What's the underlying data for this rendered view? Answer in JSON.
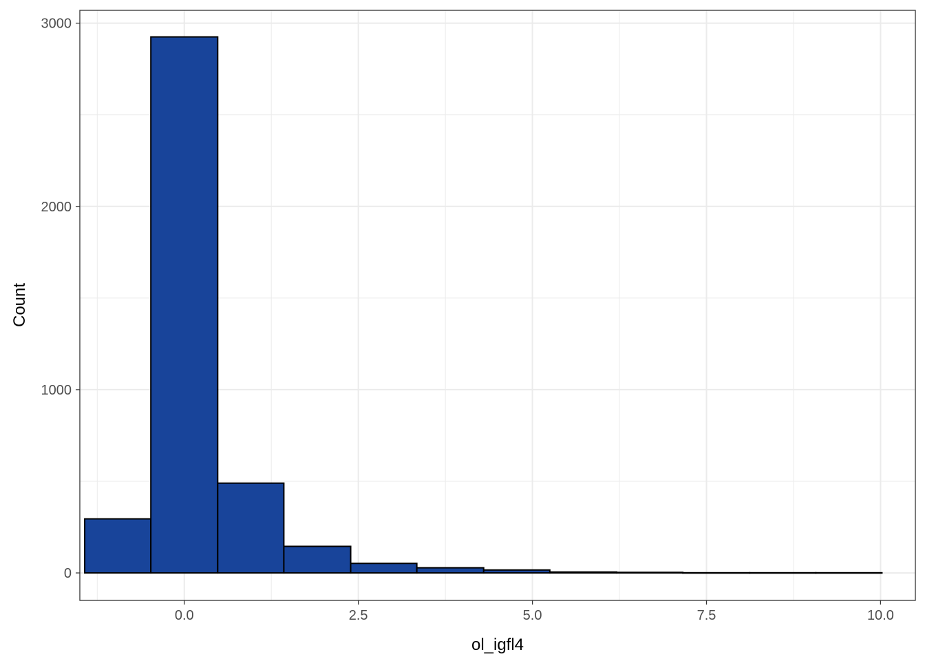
{
  "chart_data": {
    "type": "histogram",
    "title": "",
    "xlabel": "ol_igfl4",
    "ylabel": "Count",
    "xlim": [
      -1.5,
      10.5
    ],
    "ylim": [
      -150,
      3070
    ],
    "x_ticks": [
      0.0,
      2.5,
      5.0,
      7.5,
      10.0
    ],
    "x_tick_labels": [
      "0.0",
      "2.5",
      "5.0",
      "7.5",
      "10.0"
    ],
    "y_ticks": [
      0,
      1000,
      2000,
      3000
    ],
    "y_tick_labels": [
      "0",
      "1000",
      "2000",
      "3000"
    ],
    "grid": true,
    "bar_fill": "#18449A",
    "bar_stroke": "#000000",
    "bins": [
      {
        "x0": -1.43,
        "x1": -0.48,
        "count": 295
      },
      {
        "x0": -0.48,
        "x1": 0.48,
        "count": 2925
      },
      {
        "x0": 0.48,
        "x1": 1.43,
        "count": 490
      },
      {
        "x0": 1.43,
        "x1": 2.39,
        "count": 145
      },
      {
        "x0": 2.39,
        "x1": 3.34,
        "count": 52
      },
      {
        "x0": 3.34,
        "x1": 4.3,
        "count": 28
      },
      {
        "x0": 4.3,
        "x1": 5.25,
        "count": 16
      },
      {
        "x0": 5.25,
        "x1": 6.21,
        "count": 5
      },
      {
        "x0": 6.21,
        "x1": 7.16,
        "count": 3
      },
      {
        "x0": 7.16,
        "x1": 8.12,
        "count": 1
      },
      {
        "x0": 8.12,
        "x1": 9.07,
        "count": 1
      },
      {
        "x0": 9.07,
        "x1": 10.02,
        "count": 1
      }
    ]
  }
}
